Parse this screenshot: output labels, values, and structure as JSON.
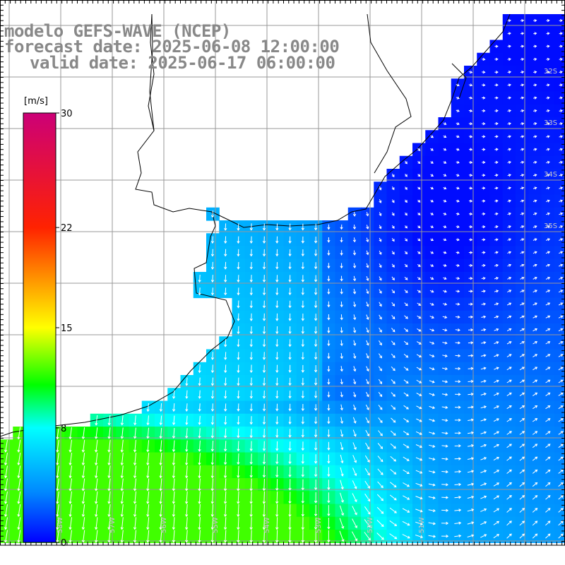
{
  "title": {
    "model": "modelo GEFS-WAVE (NCEP)",
    "forecast": "forecast date: 2025-06-08 12:00:00",
    "valid": "valid date: 2025-06-17 06:00:00"
  },
  "colorbar": {
    "unit": "[m/s]",
    "ticks": [
      {
        "value": 30,
        "label": "30"
      },
      {
        "value": 22,
        "label": "22"
      },
      {
        "value": 15,
        "label": "15"
      },
      {
        "value": 8,
        "label": "8"
      },
      {
        "value": 0,
        "label": "0"
      }
    ],
    "range": [
      0,
      30
    ],
    "stops": [
      {
        "value": 0,
        "color": "#0000ff"
      },
      {
        "value": 3.5,
        "color": "#0088ff"
      },
      {
        "value": 8,
        "color": "#00ffff"
      },
      {
        "value": 11,
        "color": "#00ff00"
      },
      {
        "value": 15,
        "color": "#ffff00"
      },
      {
        "value": 22,
        "color": "#ff2200"
      },
      {
        "value": 30,
        "color": "#cc0077"
      }
    ]
  },
  "map": {
    "lat_labels": [
      "32S",
      "33S",
      "34S",
      "35S"
    ],
    "lon_labels": [
      "58W",
      "57W",
      "56W",
      "55W",
      "54W",
      "53W",
      "52W",
      "51W"
    ],
    "land_color": "#ffffff",
    "grid_color": "#999999",
    "coast_color": "#000000",
    "arrow_color": "#ffffff"
  }
}
